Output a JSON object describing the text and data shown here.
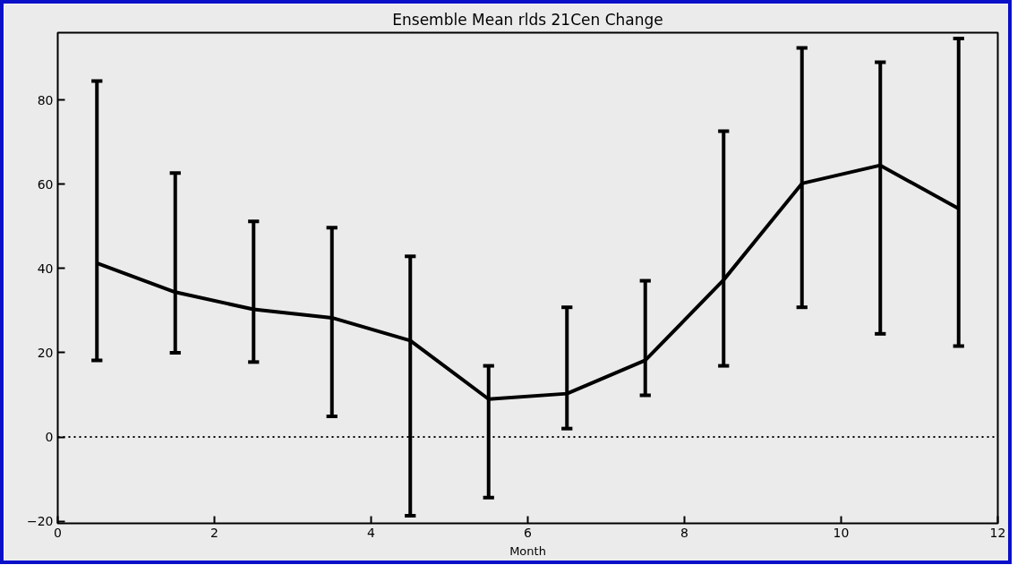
{
  "chart_data": {
    "type": "line",
    "title": "Ensemble Mean rlds 21Cen Change",
    "xlabel": "Month",
    "x": [
      0.5,
      1.5,
      2.5,
      3.5,
      4.5,
      5.5,
      6.5,
      7.5,
      8.5,
      9.5,
      10.5,
      11.5
    ],
    "series": [
      {
        "color": "#000000",
        "values": [
          41.3,
          34.4,
          30.3,
          28.3,
          22.9,
          9.0,
          10.3,
          18.2,
          37.3,
          60.2,
          64.5,
          54.2
        ],
        "errors": [
          [
            18.2,
            84.5
          ],
          [
            20.0,
            62.7
          ],
          [
            17.8,
            51.2
          ],
          [
            4.9,
            49.7
          ],
          [
            -18.7,
            42.9
          ],
          [
            -14.4,
            16.9
          ],
          [
            2.0,
            30.8
          ],
          [
            9.9,
            37.1
          ],
          [
            16.9,
            72.6
          ],
          [
            30.8,
            92.4
          ],
          [
            24.5,
            89.0
          ],
          [
            21.6,
            94.6
          ]
        ]
      }
    ],
    "xlim": [
      0,
      12
    ],
    "ylim": [
      -20.5,
      96
    ],
    "xticks": [
      0,
      2,
      4,
      6,
      8,
      10,
      12
    ],
    "yticks": [
      -20,
      0,
      20,
      40,
      60,
      80
    ],
    "ref_lines": [
      {
        "axis": "y",
        "value": 0,
        "line_style": "dotted",
        "color": "#000000"
      }
    ],
    "grid": false,
    "marker": "none",
    "line_style": "solid"
  }
}
